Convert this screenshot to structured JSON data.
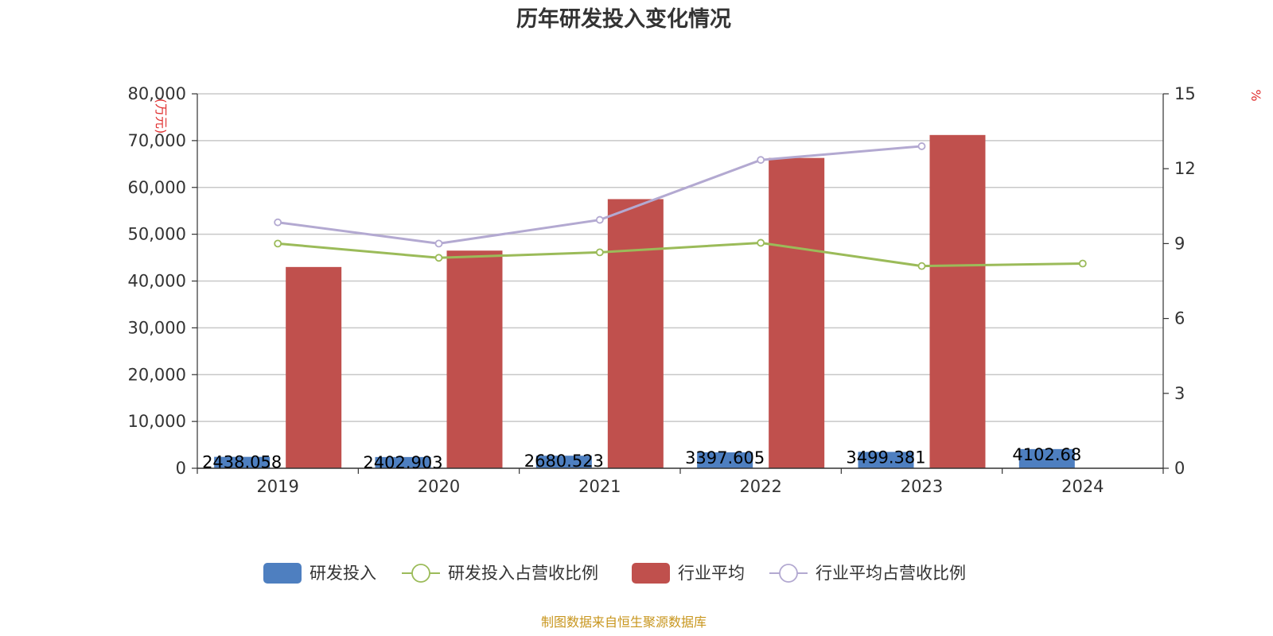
{
  "chart_data": {
    "type": "bar",
    "title": "历年研发投入变化情况",
    "categories": [
      "2019",
      "2020",
      "2021",
      "2022",
      "2023",
      "2024"
    ],
    "y_left": {
      "unit": "(万元)",
      "ylim": [
        0,
        80000
      ],
      "ticks": [
        0,
        10000,
        20000,
        30000,
        40000,
        50000,
        60000,
        70000,
        80000
      ],
      "tick_labels": [
        "0",
        "10,000",
        "20,000",
        "30,000",
        "40,000",
        "50,000",
        "60,000",
        "70,000",
        "80,000"
      ]
    },
    "y_right": {
      "unit": "%",
      "ylim": [
        0,
        15
      ],
      "ticks": [
        0,
        3,
        6,
        9,
        12,
        15
      ],
      "tick_labels": [
        "0",
        "3",
        "6",
        "9",
        "12",
        "15"
      ]
    },
    "series": [
      {
        "name": "研发投入",
        "type": "bar",
        "axis": "left",
        "color": "#4e7fc0",
        "values": [
          2438.058,
          2402.903,
          2680.523,
          3397.605,
          3499.381,
          4102.68
        ],
        "labels": [
          "2438.058",
          "2402.903",
          "2680.523",
          "3397.605",
          "3499.381",
          "4102.68"
        ]
      },
      {
        "name": "研发投入占营收比例",
        "type": "line",
        "axis": "right",
        "color": "#9bbb59",
        "values": [
          9.0,
          8.43,
          8.65,
          9.03,
          8.1,
          8.2
        ]
      },
      {
        "name": "行业平均",
        "type": "bar",
        "axis": "left",
        "color": "#c0504d",
        "values": [
          43000,
          46500,
          57500,
          66300,
          71200,
          null
        ]
      },
      {
        "name": "行业平均占营收比例",
        "type": "line",
        "axis": "right",
        "color": "#b3a9d1",
        "values": [
          9.85,
          9.0,
          9.95,
          12.35,
          12.9,
          null
        ]
      }
    ],
    "grid": true,
    "legend_position": "bottom"
  },
  "source": "制图数据来自恒生聚源数据库"
}
